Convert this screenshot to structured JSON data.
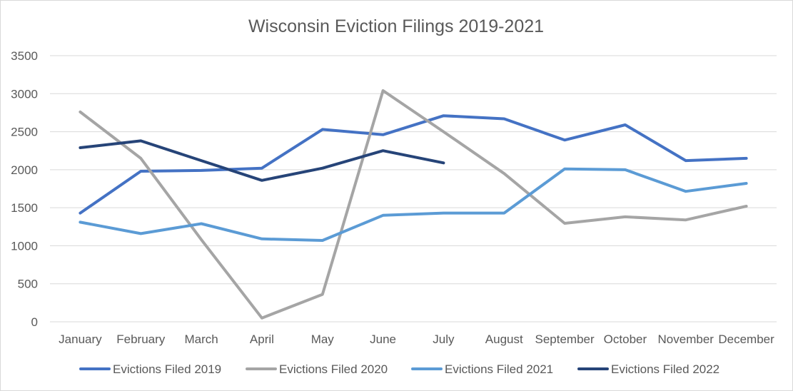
{
  "chart_data": {
    "type": "line",
    "title": "Wisconsin Eviction Filings 2019-2021",
    "xlabel": "",
    "ylabel": "",
    "categories": [
      "January",
      "February",
      "March",
      "April",
      "May",
      "June",
      "July",
      "August",
      "September",
      "October",
      "November",
      "December"
    ],
    "ylim": [
      0,
      3500
    ],
    "yticks": [
      0,
      500,
      1000,
      1500,
      2000,
      2500,
      3000,
      3500
    ],
    "grid": true,
    "legend_position": "bottom",
    "series": [
      {
        "name": "Evictions Filed 2019",
        "color": "#4472c4",
        "values": [
          1430,
          1980,
          1990,
          2020,
          2530,
          2460,
          2710,
          2670,
          2390,
          2590,
          2120,
          2150
        ]
      },
      {
        "name": "Evictions Filed 2020",
        "color": "#a5a5a5",
        "values": [
          2760,
          2150,
          1080,
          50,
          360,
          3040,
          2500,
          1950,
          1295,
          1380,
          1340,
          1520
        ]
      },
      {
        "name": "Evictions Filed 2021",
        "color": "#5b9bd5",
        "values": [
          1310,
          1160,
          1290,
          1090,
          1070,
          1400,
          1430,
          1430,
          2010,
          2000,
          1715,
          1820
        ]
      },
      {
        "name": "Evictions Filed 2022",
        "color": "#264478",
        "values": [
          2290,
          2380,
          2120,
          1860,
          2020,
          2250,
          2090,
          null,
          null,
          null,
          null,
          null
        ]
      }
    ]
  }
}
